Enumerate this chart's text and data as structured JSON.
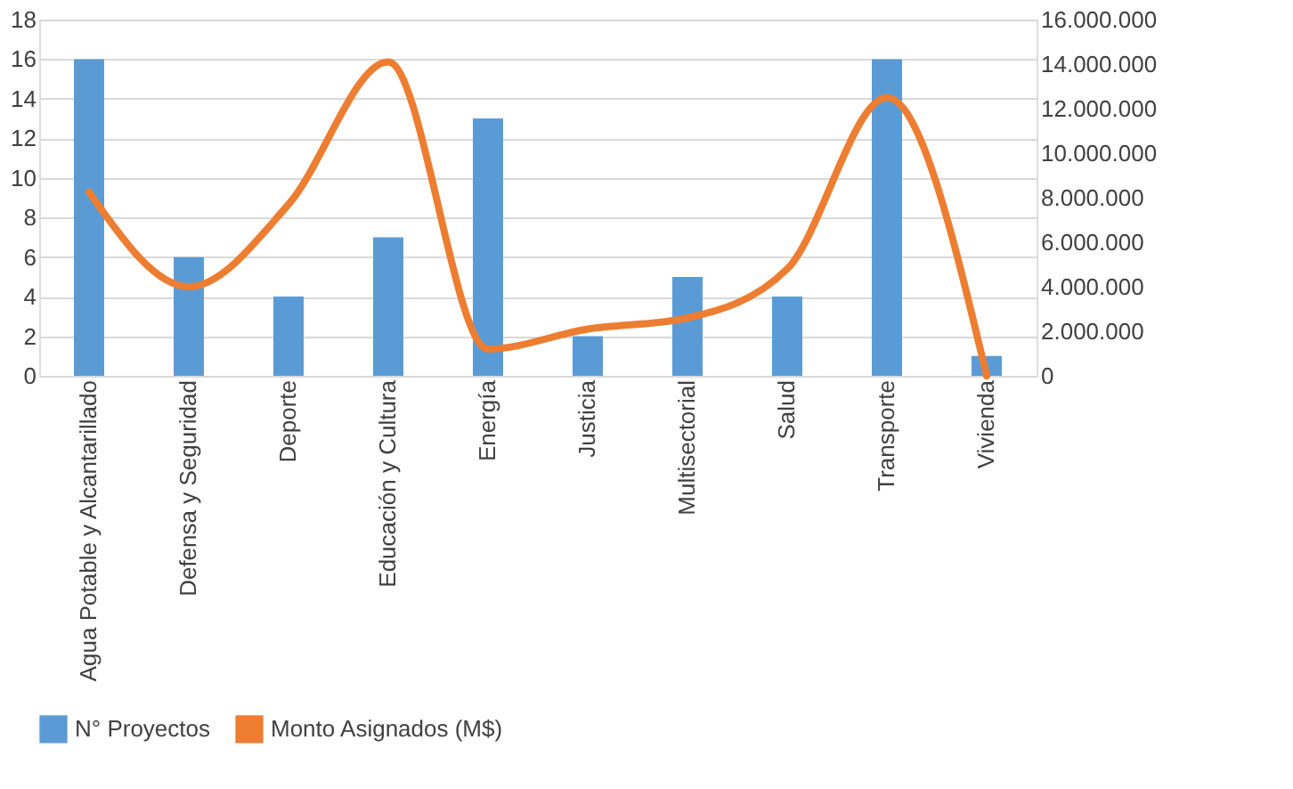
{
  "chart_data": {
    "type": "bar",
    "categories": [
      "Agua Potable y Alcantarillado",
      "Defensa y Seguridad",
      "Deporte",
      "Educación y Cultura",
      "Energía",
      "Justicia",
      "Multisectorial",
      "Salud",
      "Transporte",
      "Vivienda"
    ],
    "series": [
      {
        "name": "N° Proyectos",
        "color": "#5b9bd5",
        "values": [
          16,
          6,
          4,
          7,
          13,
          2,
          5,
          4,
          16,
          1
        ]
      },
      {
        "name": "Monto Asignados (M$)",
        "type": "line",
        "axis": "y2",
        "color": "#ed7d31",
        "values": [
          8250000,
          4000000,
          7700000,
          14100000,
          1200000,
          2100000,
          2600000,
          4800000,
          12500000,
          0
        ]
      }
    ],
    "ylim": [
      0,
      18
    ],
    "yticks": [
      0,
      2,
      4,
      6,
      8,
      10,
      12,
      14,
      16,
      18
    ],
    "y2lim": [
      0,
      16000000
    ],
    "y2ticks": [
      {
        "value": 0,
        "label": "0"
      },
      {
        "value": 2000000,
        "label": "2.000.000"
      },
      {
        "value": 4000000,
        "label": "4.000.000"
      },
      {
        "value": 6000000,
        "label": "6.000.000"
      },
      {
        "value": 8000000,
        "label": "8.000.000"
      },
      {
        "value": 10000000,
        "label": "10.000.000"
      },
      {
        "value": 12000000,
        "label": "12.000.000"
      },
      {
        "value": 14000000,
        "label": "14.000.000"
      },
      {
        "value": 16000000,
        "label": "16.000.000"
      }
    ],
    "grid": "y",
    "legend": "bottom",
    "line_style": "solid"
  }
}
